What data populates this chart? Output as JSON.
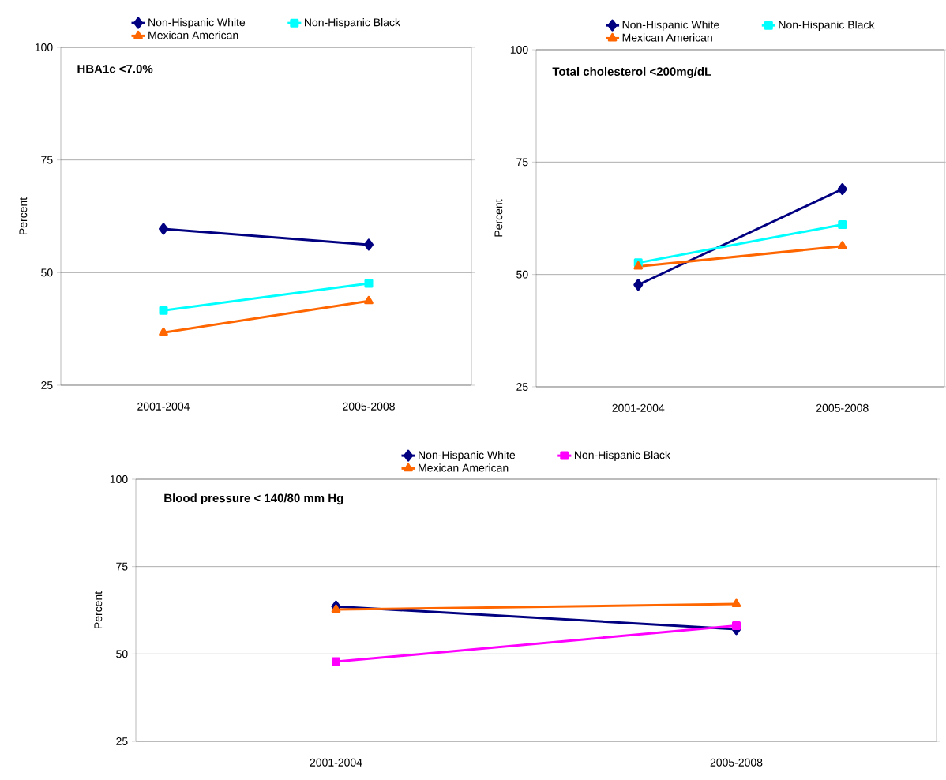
{
  "chart_data": [
    {
      "type": "line",
      "title": "HBA1c <7.0%",
      "ylabel": "Percent",
      "categories": [
        "2001-2004",
        "2005-2008"
      ],
      "ylim": [
        25,
        100
      ],
      "yticks": [
        25,
        50,
        75,
        100
      ],
      "grid": "y",
      "legend": "top",
      "line_style": "solid",
      "series": [
        {
          "name": "Non-Hispanic White",
          "color": "#000080",
          "marker": "diamond",
          "values": [
            59.7,
            56.2
          ]
        },
        {
          "name": "Non-Hispanic Black",
          "color": "#00ffff",
          "marker": "square",
          "values": [
            41.6,
            47.6
          ]
        },
        {
          "name": "Mexican American",
          "color": "#ff6600",
          "marker": "triangle",
          "values": [
            36.7,
            43.7
          ]
        }
      ]
    },
    {
      "type": "line",
      "title": "Total cholesterol <200mg/dL",
      "ylabel": "Percent",
      "categories": [
        "2001-2004",
        "2005-2008"
      ],
      "ylim": [
        25,
        100
      ],
      "yticks": [
        25,
        50,
        75,
        100
      ],
      "grid": "y",
      "legend": "top",
      "line_style": "solid",
      "series": [
        {
          "name": "Non-Hispanic White",
          "color": "#000080",
          "marker": "diamond",
          "values": [
            47.7,
            69.0
          ]
        },
        {
          "name": "Non-Hispanic Black",
          "color": "#00ffff",
          "marker": "square",
          "values": [
            52.6,
            61.1
          ]
        },
        {
          "name": "Mexican American",
          "color": "#ff6600",
          "marker": "triangle",
          "values": [
            51.8,
            56.3
          ]
        }
      ]
    },
    {
      "type": "line",
      "title": "Blood pressure < 140/80 mm Hg",
      "ylabel": "Percent",
      "categories": [
        "2001-2004",
        "2005-2008"
      ],
      "ylim": [
        25,
        100
      ],
      "yticks": [
        25,
        50,
        75,
        100
      ],
      "grid": "y",
      "legend": "top",
      "line_style": "solid",
      "series": [
        {
          "name": "Non-Hispanic White",
          "color": "#000080",
          "marker": "diamond",
          "values": [
            63.6,
            57.1
          ]
        },
        {
          "name": "Non-Hispanic Black",
          "color": "#ff00ff",
          "marker": "square",
          "values": [
            47.8,
            58.1
          ]
        },
        {
          "name": "Mexican American",
          "color": "#ff6600",
          "marker": "triangle",
          "values": [
            62.7,
            64.3
          ]
        }
      ]
    }
  ]
}
